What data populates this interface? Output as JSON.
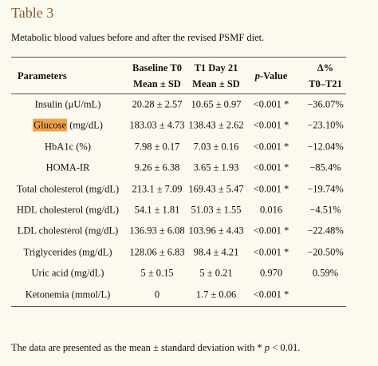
{
  "header": {
    "title": "Table 3",
    "caption": "Metabolic blood values before and after the revised PSMF diet."
  },
  "table": {
    "columns": [
      {
        "line1": "Parameters"
      },
      {
        "line1": "Baseline T0",
        "line2": "Mean ± SD"
      },
      {
        "line1": "T1 Day 21",
        "line2": "Mean ± SD"
      },
      {
        "italic": "p",
        "line1": "-Value"
      },
      {
        "line1": "Δ%",
        "line2": "T0–T21"
      }
    ],
    "rows": [
      [
        "Insulin (μU/mL)",
        "20.28 ± 2.57",
        "10.65 ± 0.97",
        "<0.001 *",
        "−36.07%"
      ],
      [
        {
          "highlighted": "Glucose",
          "text": " (mg/dL)"
        },
        "183.03 ± 4.73",
        "138.43 ± 2.62",
        "<0.001 *",
        "−23.10%"
      ],
      [
        "HbA1c (%)",
        "7.98 ± 0.17",
        "7.03 ± 0.16",
        "<0.001 *",
        "−12.04%"
      ],
      [
        "HOMA-IR",
        "9.26 ± 6.38",
        "3.65 ± 1.93",
        "<0.001 *",
        "−85.4%"
      ],
      [
        "Total cholesterol (mg/dL)",
        "213.1 ± 7.09",
        "169.43 ± 5.47",
        "<0.001 *",
        "−19.74%"
      ],
      [
        "HDL cholesterol (mg/dL)",
        "54.1 ± 1.81",
        "51.03 ± 1.55",
        "0.016",
        "−4.51%"
      ],
      [
        "LDL cholesterol (mg/dL)",
        "136.93 ± 6.08",
        "103.96 ± 4.43",
        "<0.001 *",
        "−22.48%"
      ],
      [
        "Triglycerides (mg/dL)",
        "128.06 ± 6.83",
        "98.4 ± 4.21",
        "<0.001 *",
        "−20.50%"
      ],
      [
        "Uric acid (mg/dL)",
        "5 ± 0.15",
        "5 ± 0.21",
        "0.970",
        "0.59%"
      ],
      [
        "Ketonemia (mmol/L)",
        "0",
        "1.7 ± 0.06",
        "<0.001 *",
        null
      ]
    ]
  },
  "footnote": {
    "before": "The data are presented as the mean ± standard deviation with * ",
    "italic": "p",
    "after": " < 0.01."
  }
}
